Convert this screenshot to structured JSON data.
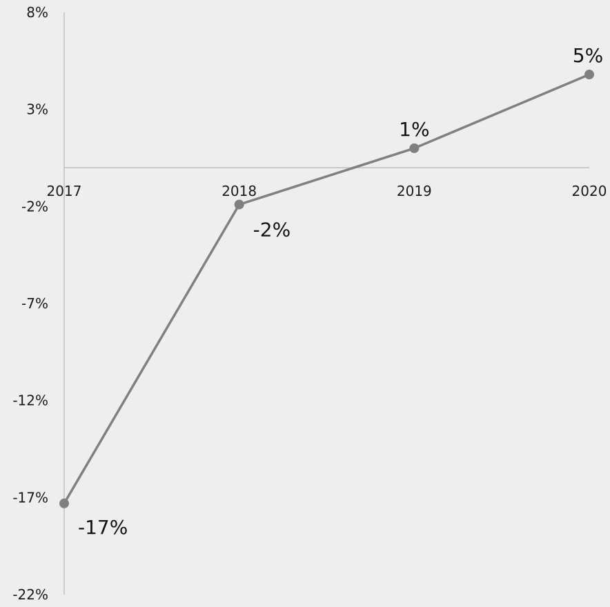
{
  "chart_data": {
    "type": "line",
    "title": "",
    "xlabel": "",
    "ylabel": "",
    "categories": [
      "2017",
      "2018",
      "2019",
      "2020"
    ],
    "series": [
      {
        "values": [
          -17.3,
          -1.9,
          1.0,
          4.8
        ],
        "labels": [
          "-17%",
          "-2%",
          "1%",
          "5%"
        ]
      }
    ],
    "ylim": [
      -22,
      8
    ],
    "yticks": [
      8,
      3,
      -2,
      -7,
      -12,
      -17,
      -22
    ],
    "ytick_labels": [
      "8%",
      "3%",
      "-2%",
      "-7%",
      "-12%",
      "-17%",
      "-22%"
    ],
    "grid": false,
    "legend": "none",
    "colors": {
      "line": "#808080",
      "axis": "#bfbfbf",
      "background": "#eeeeee"
    }
  }
}
